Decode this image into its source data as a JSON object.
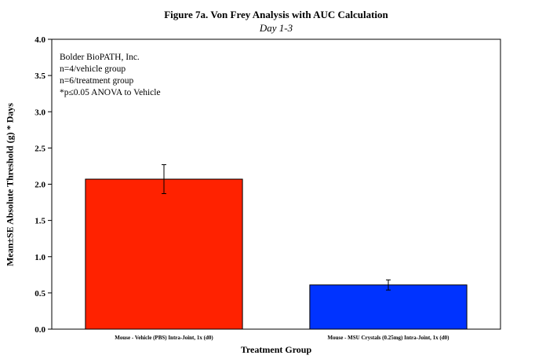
{
  "chart_data": {
    "type": "bar",
    "title": "Figure 7a.  Von Frey Analysis with AUC Calculation",
    "subtitle": "Day 1-3",
    "xlabel": "Treatment Group",
    "ylabel": "Mean±SE Absolute Threshold (g) * Days",
    "ylim": [
      0,
      4.0
    ],
    "yticks": [
      "0.0",
      "0.5",
      "1.0",
      "1.5",
      "2.0",
      "2.5",
      "3.0",
      "3.5",
      "4.0"
    ],
    "grid": false,
    "categories": [
      "Mouse - Vehicle (PBS) Intra-Joint, 1x (d0)",
      "Mouse - MSU Crystals (0.25mg) Intra-Joint, 1x (d0)"
    ],
    "values": [
      2.07,
      0.61
    ],
    "errors": [
      0.2,
      0.07
    ],
    "colors": [
      "#ff2200",
      "#0033ff"
    ],
    "annotations": [
      "Bolder BioPATH, Inc.",
      "n=4/vehicle group",
      "n=6/treatment group",
      "*p≤0.05 ANOVA to Vehicle"
    ]
  }
}
